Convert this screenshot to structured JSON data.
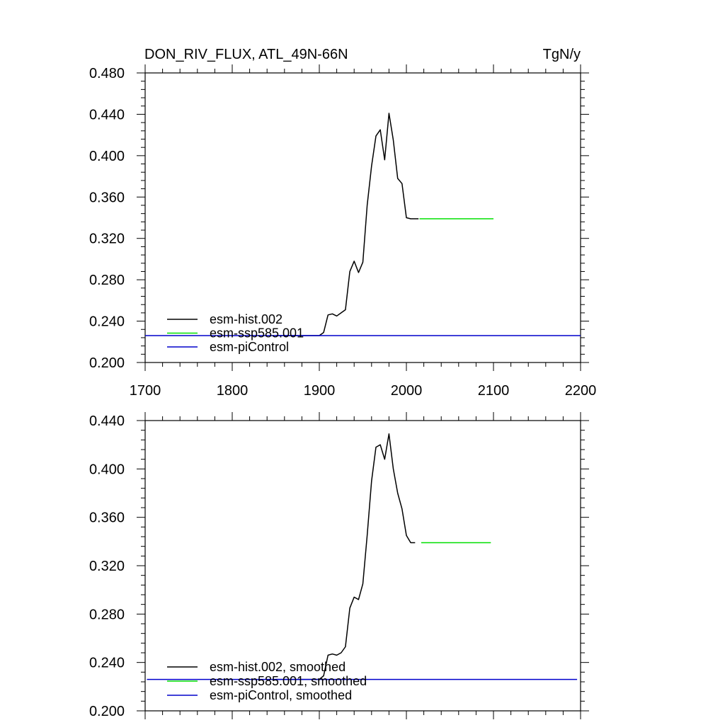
{
  "header": {
    "title": "DON_RIV_FLUX, ATL_49N-66N",
    "units": "TgN/y"
  },
  "colors": {
    "hist": "#000000",
    "ssp585": "#00e000",
    "piControl": "#0000cc"
  },
  "chart_data": [
    {
      "type": "line",
      "xlim": [
        1700,
        2200
      ],
      "ylim": [
        0.2,
        0.48
      ],
      "xticks": [
        "1700",
        "1800",
        "1900",
        "2000",
        "2100",
        "2200"
      ],
      "yticks": [
        "0.200",
        "0.240",
        "0.280",
        "0.320",
        "0.360",
        "0.400",
        "0.440",
        "0.480"
      ],
      "legend_position": "bottom-left",
      "series": [
        {
          "name": "esm-hist.002",
          "color": "#000000",
          "x": [
            1850,
            1900,
            1905,
            1910,
            1915,
            1920,
            1925,
            1930,
            1935,
            1940,
            1945,
            1950,
            1955,
            1960,
            1965,
            1970,
            1975,
            1980,
            1985,
            1990,
            1995,
            2000,
            2005,
            2010,
            2014
          ],
          "y": [
            0.226,
            0.226,
            0.229,
            0.246,
            0.247,
            0.245,
            0.248,
            0.251,
            0.288,
            0.298,
            0.287,
            0.297,
            0.352,
            0.39,
            0.419,
            0.425,
            0.396,
            0.441,
            0.415,
            0.378,
            0.373,
            0.34,
            0.339,
            0.339,
            0.339
          ]
        },
        {
          "name": "esm-ssp585.001",
          "color": "#00e000",
          "x": [
            2015,
            2100
          ],
          "y": [
            0.339,
            0.339
          ]
        },
        {
          "name": "esm-piControl",
          "color": "#0000cc",
          "x": [
            1700,
            2200
          ],
          "y": [
            0.226,
            0.226
          ]
        }
      ]
    },
    {
      "type": "line",
      "xlim": [
        1700,
        2200
      ],
      "ylim": [
        0.2,
        0.44
      ],
      "yticks": [
        "0.200",
        "0.240",
        "0.280",
        "0.320",
        "0.360",
        "0.400",
        "0.440"
      ],
      "legend_position": "bottom-left",
      "series": [
        {
          "name": "esm-hist.002, smoothed",
          "color": "#000000",
          "x": [
            1850,
            1900,
            1905,
            1910,
            1915,
            1920,
            1925,
            1930,
            1935,
            1940,
            1945,
            1950,
            1955,
            1960,
            1965,
            1970,
            1975,
            1980,
            1985,
            1990,
            1995,
            2000,
            2005,
            2010
          ],
          "y": [
            0.226,
            0.226,
            0.229,
            0.246,
            0.247,
            0.246,
            0.248,
            0.253,
            0.285,
            0.294,
            0.292,
            0.305,
            0.345,
            0.39,
            0.418,
            0.42,
            0.408,
            0.429,
            0.4,
            0.38,
            0.367,
            0.345,
            0.339,
            0.339
          ]
        },
        {
          "name": "esm-ssp585.001, smoothed",
          "color": "#00e000",
          "x": [
            2017,
            2097
          ],
          "y": [
            0.339,
            0.339
          ]
        },
        {
          "name": "esm-piControl, smoothed",
          "color": "#0000cc",
          "x": [
            1702,
            2196
          ],
          "y": [
            0.226,
            0.226
          ]
        }
      ]
    }
  ]
}
